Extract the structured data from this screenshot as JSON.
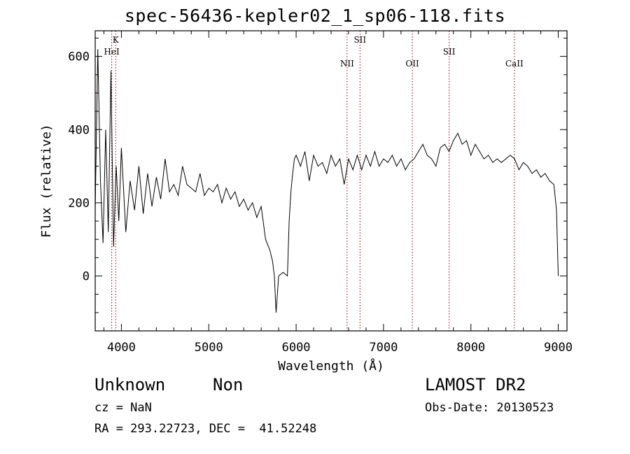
{
  "header": {
    "title": "spec-56436-kepler02_1_sp06-118.fits"
  },
  "info": {
    "class": "Unknown",
    "subclass": "Non",
    "survey": "LAMOST DR2",
    "cz": "cz = NaN",
    "obs_date": "Obs-Date: 20130523",
    "radec": "RA = 293.22723, DEC =  41.52248"
  },
  "chart_data": {
    "type": "line",
    "title": "spec-56436-kepler02_1_sp06-118.fits",
    "xlabel": "Wavelength (Å)",
    "ylabel": "Flux (relative)",
    "xlim": [
      3700,
      9100
    ],
    "ylim": [
      -150,
      670
    ],
    "xticks": [
      4000,
      5000,
      6000,
      7000,
      8000,
      9000
    ],
    "yticks": [
      0,
      200,
      400,
      600
    ],
    "grid": false,
    "line_color": "#000000",
    "marker_color": "#8b0000",
    "lines": [
      {
        "name": "K",
        "wavelength": 3934
      },
      {
        "name": "HeI",
        "wavelength": 3889
      },
      {
        "name": "NII",
        "wavelength": 6583
      },
      {
        "name": "SII",
        "wavelength": 6731
      },
      {
        "name": "OII",
        "wavelength": 7330
      },
      {
        "name": "SII",
        "wavelength": 7751
      },
      {
        "name": "CaII",
        "wavelength": 8498
      }
    ],
    "series": [
      {
        "x": [
          3700,
          3730,
          3760,
          3790,
          3820,
          3850,
          3880,
          3910,
          3940,
          3970,
          4000,
          4050,
          4100,
          4150,
          4200,
          4250,
          4300,
          4350,
          4400,
          4450,
          4500,
          4550,
          4600,
          4650,
          4700,
          4750,
          4800,
          4850,
          4900,
          4950,
          5000,
          5050,
          5100,
          5150,
          5200,
          5250,
          5300,
          5350,
          5400,
          5450,
          5500,
          5550,
          5600,
          5650,
          5700,
          5730,
          5750,
          5770,
          5800,
          5850,
          5900,
          5920,
          5940,
          5960,
          5980,
          6000,
          6050,
          6100,
          6150,
          6200,
          6250,
          6300,
          6350,
          6400,
          6450,
          6500,
          6550,
          6600,
          6650,
          6700,
          6750,
          6800,
          6850,
          6900,
          6950,
          7000,
          7050,
          7100,
          7150,
          7200,
          7250,
          7300,
          7350,
          7400,
          7450,
          7500,
          7550,
          7600,
          7650,
          7700,
          7750,
          7800,
          7850,
          7900,
          7950,
          8000,
          8050,
          8100,
          8150,
          8200,
          8250,
          8300,
          8350,
          8400,
          8450,
          8500,
          8550,
          8600,
          8650,
          8700,
          8750,
          8800,
          8850,
          8900,
          8950,
          8980,
          9000
        ],
        "values": [
          180,
          620,
          260,
          90,
          400,
          120,
          560,
          80,
          300,
          150,
          350,
          120,
          260,
          180,
          300,
          170,
          280,
          190,
          270,
          210,
          320,
          230,
          250,
          220,
          300,
          250,
          240,
          230,
          280,
          220,
          240,
          230,
          250,
          200,
          240,
          210,
          230,
          190,
          210,
          180,
          200,
          160,
          190,
          100,
          70,
          40,
          0,
          -100,
          0,
          10,
          0,
          150,
          230,
          280,
          320,
          330,
          300,
          340,
          260,
          330,
          300,
          310,
          280,
          330,
          300,
          320,
          250,
          320,
          290,
          330,
          290,
          330,
          300,
          340,
          300,
          320,
          310,
          330,
          300,
          320,
          290,
          310,
          320,
          340,
          360,
          330,
          320,
          300,
          350,
          360,
          340,
          370,
          390,
          360,
          370,
          330,
          360,
          340,
          320,
          330,
          310,
          320,
          310,
          320,
          330,
          320,
          290,
          310,
          300,
          280,
          290,
          270,
          280,
          260,
          250,
          180,
          0
        ]
      }
    ]
  }
}
